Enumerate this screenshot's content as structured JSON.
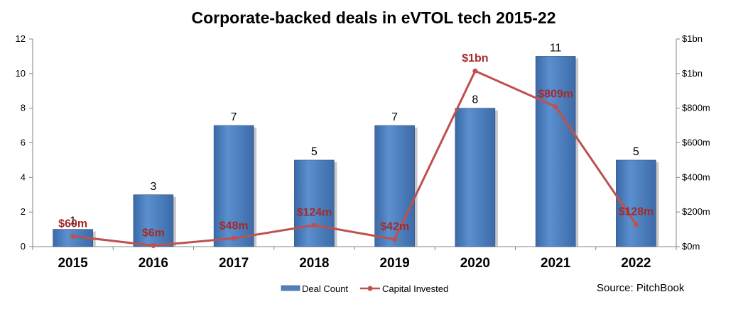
{
  "chart_data": {
    "type": "bar",
    "title": "Corporate-backed deals in eVTOL tech 2015-22",
    "categories": [
      "2015",
      "2016",
      "2017",
      "2018",
      "2019",
      "2020",
      "2021",
      "2022"
    ],
    "series": [
      {
        "name": "Deal Count",
        "type": "bar",
        "axis": "left",
        "values": [
          1,
          3,
          7,
          5,
          7,
          8,
          11,
          5
        ],
        "labels": [
          "1",
          "3",
          "7",
          "5",
          "7",
          "8",
          "11",
          "5"
        ],
        "color": "#4f81bd"
      },
      {
        "name": "Capital Invested",
        "type": "line",
        "axis": "right",
        "values": [
          60,
          6,
          48,
          124,
          42,
          1015,
          809,
          128
        ],
        "labels": [
          "$60m",
          "$6m",
          "$48m",
          "$124m",
          "$42m",
          "$1bn",
          "$809m",
          "$128m"
        ],
        "color": "#c0504d",
        "label_color": "#a52a2a"
      }
    ],
    "left_axis": {
      "ylim": [
        0,
        12
      ],
      "ticks": [
        "0",
        "2",
        "4",
        "6",
        "8",
        "10",
        "12"
      ]
    },
    "right_axis": {
      "ylim": [
        0,
        1200
      ],
      "ticks": [
        "$0m",
        "$200m",
        "$400m",
        "$600m",
        "$800m",
        "$1bn",
        "$1bn"
      ]
    },
    "grid": false,
    "legend": {
      "position": "bottom"
    },
    "source": "Source: PitchBook"
  }
}
